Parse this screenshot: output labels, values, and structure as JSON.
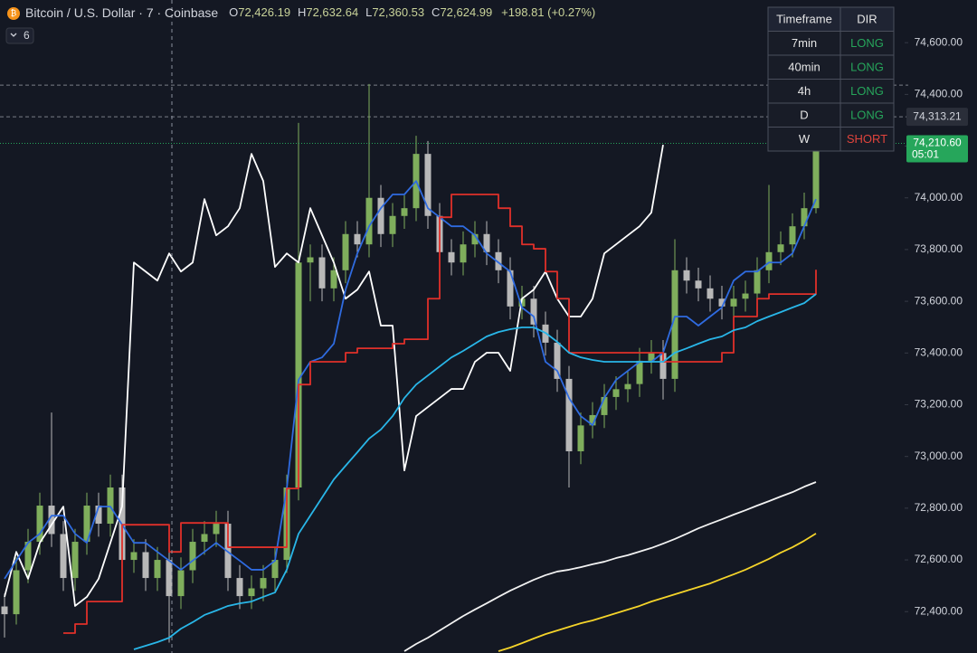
{
  "header": {
    "symbol": "Bitcoin / U.S. Dollar · 7 · Coinbase",
    "open_label": "O",
    "open": "72,426.19",
    "high_label": "H",
    "high": "72,632.64",
    "low_label": "L",
    "low": "72,360.53",
    "close_label": "C",
    "close": "72,624.99",
    "change": "+198.81 (+0.27%)",
    "indicator_count": "6"
  },
  "table": {
    "header": [
      "Timeframe",
      "DIR"
    ],
    "rows": [
      [
        "7min",
        "LONG"
      ],
      [
        "40min",
        "LONG"
      ],
      [
        "4h",
        "LONG"
      ],
      [
        "D",
        "LONG"
      ],
      [
        "W",
        "SHORT"
      ]
    ],
    "dir_colors": [
      "#26a65b",
      "#26a65b",
      "#26a65b",
      "#26a65b",
      "#e0443c"
    ]
  },
  "chart_data": {
    "type": "candlestick",
    "ylim": [
      72240,
      74765
    ],
    "yticks": [
      {
        "value": 72400,
        "label": "72,400.00"
      },
      {
        "value": 72600,
        "label": "72,600.00"
      },
      {
        "value": 72800,
        "label": "72,800.00"
      },
      {
        "value": 73000,
        "label": "73,000.00"
      },
      {
        "value": 73200,
        "label": "73,200.00"
      },
      {
        "value": 73400,
        "label": "73,400.00"
      },
      {
        "value": 73600,
        "label": "73,600.00"
      },
      {
        "value": 73800,
        "label": "73,800.00"
      },
      {
        "value": 74000,
        "label": "74,000.00"
      },
      {
        "value": 74200,
        "label": "74,200.00"
      },
      {
        "value": 74400,
        "label": "74,400.00"
      },
      {
        "value": 74600,
        "label": "74,600.00"
      }
    ],
    "up_color": "#7fae5c",
    "down_color": "#b8b8b8",
    "candles": {
      "open": [
        72420,
        72390,
        72560,
        72670,
        72810,
        72700,
        72530,
        72670,
        72810,
        72740,
        72880,
        72600,
        72630,
        72530,
        72600,
        72460,
        72560,
        72670,
        72700,
        72740,
        72530,
        72460,
        72490,
        72530,
        72600,
        72880,
        73750,
        73770,
        73650,
        73720,
        73860,
        73820,
        74000,
        73860,
        73930,
        73960,
        74170,
        73930,
        73790,
        73750,
        73820,
        73860,
        73790,
        73720,
        73580,
        73610,
        73510,
        73440,
        73300,
        73020,
        73120,
        73160,
        73230,
        73260,
        73280,
        73370,
        73400,
        73300,
        73720,
        73680,
        73650,
        73610,
        73580,
        73610,
        73630,
        73720,
        73790,
        73820,
        73890,
        73960
      ],
      "high": [
        72470,
        72610,
        72720,
        72860,
        73170,
        72750,
        72720,
        72860,
        72860,
        72930,
        72930,
        72680,
        72680,
        72650,
        72650,
        72610,
        72720,
        72750,
        72790,
        72790,
        72580,
        72540,
        72580,
        72650,
        72930,
        74290,
        73820,
        73820,
        73770,
        73910,
        73910,
        74440,
        74050,
        73980,
        74010,
        74240,
        74220,
        73980,
        73840,
        73870,
        73910,
        73910,
        73840,
        73770,
        73660,
        73660,
        73560,
        73490,
        73350,
        73170,
        73210,
        73280,
        73310,
        73330,
        73420,
        73450,
        73450,
        73840,
        73770,
        73730,
        73700,
        73660,
        73660,
        73680,
        73770,
        74050,
        73870,
        73940,
        74020,
        74230
      ],
      "low": [
        72300,
        72350,
        72510,
        72620,
        72650,
        72480,
        72480,
        72620,
        72690,
        72690,
        72550,
        72550,
        72480,
        72480,
        72280,
        72410,
        72510,
        72620,
        72650,
        72480,
        72410,
        72410,
        72440,
        72480,
        72550,
        72830,
        73600,
        73600,
        73600,
        73670,
        73770,
        73770,
        73810,
        73810,
        73880,
        73910,
        73880,
        73640,
        73700,
        73700,
        73770,
        73740,
        73670,
        73530,
        73530,
        73460,
        73390,
        73250,
        72880,
        72970,
        73070,
        73110,
        73180,
        73210,
        73230,
        73320,
        73220,
        73250,
        73630,
        73600,
        73560,
        73530,
        73470,
        73560,
        73580,
        73670,
        73740,
        73770,
        73840,
        73940
      ],
      "close": [
        72390,
        72560,
        72670,
        72810,
        72700,
        72530,
        72670,
        72810,
        72740,
        72880,
        72600,
        72630,
        72530,
        72600,
        72460,
        72560,
        72670,
        72700,
        72740,
        72530,
        72460,
        72490,
        72530,
        72600,
        72880,
        73750,
        73770,
        73650,
        73720,
        73860,
        73820,
        74000,
        73860,
        73930,
        73960,
        74170,
        73930,
        73790,
        73750,
        73820,
        73860,
        73790,
        73720,
        73580,
        73610,
        73510,
        73440,
        73300,
        73020,
        73120,
        73160,
        73230,
        73260,
        73280,
        73370,
        73400,
        73300,
        73720,
        73680,
        73650,
        73610,
        73580,
        73610,
        73630,
        73720,
        73790,
        73820,
        73890,
        73960,
        74210.6
      ]
    },
    "series": [
      {
        "color": "#ffffff",
        "values": [
          72457,
          72631,
          72527,
          72666,
          72736,
          72806,
          72422,
          72457,
          72527,
          72666,
          72806,
          73750,
          73715,
          73680,
          73785,
          73715,
          73750,
          73995,
          73855,
          73890,
          73960,
          74170,
          74065,
          73733,
          73785,
          73750,
          73960,
          73855,
          73750,
          73610,
          73645,
          73715,
          73506,
          73506,
          72946,
          73156,
          73191,
          73226,
          73261,
          73261,
          73366,
          73401,
          73401,
          73331,
          73610,
          73645,
          73715,
          73610,
          73541,
          73541,
          73610,
          73785,
          73820,
          73855,
          73890,
          73943,
          74205,
          null,
          null,
          null,
          null,
          null,
          null,
          null,
          null,
          null,
          null,
          null,
          null,
          null
        ]
      },
      {
        "color": "#2f6be0",
        "values": [
          72527,
          72597,
          72666,
          72701,
          72771,
          72771,
          72701,
          72666,
          72806,
          72806,
          72736,
          72666,
          72666,
          72631,
          72597,
          72562,
          72597,
          72631,
          72666,
          72631,
          72597,
          72562,
          72562,
          72597,
          72876,
          73296,
          73366,
          73383,
          73436,
          73645,
          73785,
          73890,
          73960,
          74013,
          74013,
          74065,
          73960,
          73925,
          73890,
          73890,
          73855,
          73785,
          73750,
          73715,
          73576,
          73541,
          73366,
          73331,
          73226,
          73156,
          73121,
          73226,
          73296,
          73331,
          73366,
          73366,
          73401,
          73541,
          73541,
          73506,
          73541,
          73576,
          73680,
          73715,
          73715,
          73750,
          73750,
          73785,
          73890,
          73995
        ]
      },
      {
        "color": "#e0302a",
        "step": true,
        "values": [
          null,
          null,
          null,
          null,
          null,
          72317,
          72352,
          72439,
          72439,
          72439,
          72736,
          72736,
          72736,
          72736,
          72631,
          72743,
          72743,
          72743,
          72743,
          72649,
          72649,
          72649,
          72649,
          72649,
          72876,
          73278,
          73366,
          73366,
          73366,
          73401,
          73418,
          73418,
          73418,
          73436,
          73453,
          73453,
          73610,
          73925,
          74013,
          74013,
          74013,
          74013,
          73960,
          73890,
          73820,
          73803,
          73715,
          73610,
          73401,
          73401,
          73401,
          73401,
          73401,
          73401,
          73401,
          73401,
          73366,
          73366,
          73366,
          73366,
          73366,
          73401,
          73541,
          73541,
          73610,
          73628,
          73628,
          73628,
          73628,
          73722
        ]
      },
      {
        "color": "#29b6e8",
        "values": [
          null,
          null,
          null,
          null,
          null,
          null,
          null,
          null,
          null,
          null,
          null,
          72254,
          72268,
          72282,
          72299,
          72334,
          72359,
          72387,
          72404,
          72422,
          72432,
          72439,
          72457,
          72474,
          72562,
          72701,
          72771,
          72841,
          72911,
          72964,
          73016,
          73069,
          73104,
          73156,
          73226,
          73278,
          73313,
          73348,
          73383,
          73408,
          73436,
          73464,
          73481,
          73492,
          73499,
          73499,
          73478,
          73443,
          73401,
          73383,
          73373,
          73366,
          73366,
          73366,
          73366,
          73366,
          73366,
          73401,
          73418,
          73436,
          73453,
          73464,
          73488,
          73499,
          73523,
          73541,
          73558,
          73576,
          73593,
          73628
        ]
      },
      {
        "color": "#f2f2f2",
        "values": [
          null,
          null,
          null,
          null,
          null,
          null,
          null,
          null,
          null,
          null,
          null,
          null,
          null,
          null,
          null,
          null,
          null,
          null,
          null,
          null,
          null,
          null,
          null,
          null,
          null,
          null,
          null,
          null,
          null,
          null,
          null,
          null,
          null,
          null,
          72247,
          72275,
          72299,
          72327,
          72355,
          72383,
          72408,
          72432,
          72457,
          72481,
          72502,
          72523,
          72541,
          72555,
          72562,
          72572,
          72583,
          72593,
          72607,
          72618,
          72632,
          72646,
          72663,
          72681,
          72701,
          72722,
          72740,
          72757,
          72775,
          72792,
          72810,
          72827,
          72845,
          72862,
          72883,
          72901
        ]
      },
      {
        "color": "#f5d42a",
        "values": [
          null,
          null,
          null,
          null,
          null,
          null,
          null,
          null,
          null,
          null,
          null,
          null,
          null,
          null,
          null,
          null,
          null,
          null,
          null,
          null,
          null,
          null,
          null,
          null,
          null,
          null,
          null,
          null,
          null,
          null,
          null,
          null,
          null,
          null,
          null,
          null,
          null,
          null,
          null,
          null,
          null,
          null,
          72247,
          72261,
          72278,
          72296,
          72313,
          72327,
          72341,
          72355,
          72366,
          72380,
          72394,
          72408,
          72422,
          72439,
          72453,
          72467,
          72481,
          72495,
          72509,
          72527,
          72544,
          72562,
          72583,
          72604,
          72628,
          72649,
          72674,
          72702
        ]
      }
    ],
    "reference_lines": [
      {
        "value": 74436
      },
      {
        "value": 74313.21,
        "label": "74,313.21"
      }
    ],
    "last_price": {
      "value": 74210.6,
      "label": "74,210.60",
      "countdown": "05:01",
      "color": "#26a65b"
    }
  }
}
